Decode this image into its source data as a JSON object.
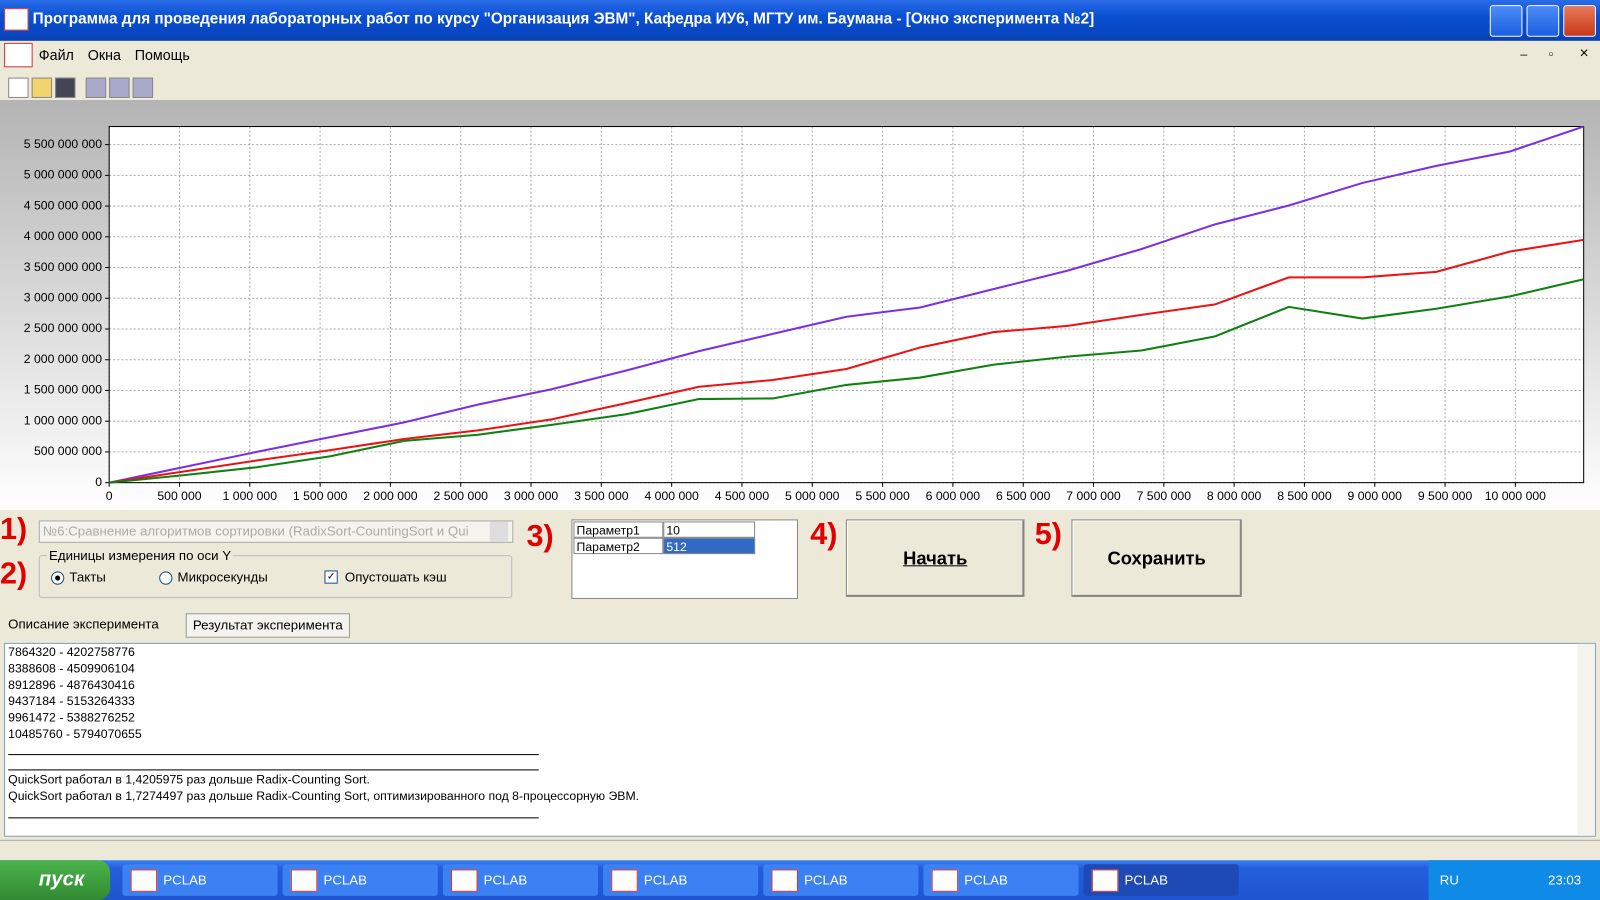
{
  "window": {
    "title": "Программа для проведения лабораторных работ по курсу \"Организация ЭВМ\", Кафедра ИУ6, МГТУ им. Баумана - [Окно эксперимента №2]"
  },
  "menu": [
    "Файл",
    "Окна",
    "Помощь"
  ],
  "chart_data": {
    "type": "line",
    "x": [
      0,
      524288,
      1048576,
      1572864,
      2097152,
      2621440,
      3145728,
      3670016,
      4194304,
      4718592,
      5242880,
      5767168,
      6291456,
      6815744,
      7340032,
      7864320,
      8388608,
      8912896,
      9437184,
      9961472,
      10485760
    ],
    "series": [
      {
        "color": "#7a2ee6",
        "values": [
          0,
          250000000,
          500000000,
          740000000,
          980000000,
          1270000000,
          1520000000,
          1820000000,
          2140000000,
          2420000000,
          2700000000,
          2850000000,
          3150000000,
          3450000000,
          3800000000,
          4202758776,
          4509906104,
          4876430416,
          5153264333,
          5388276252,
          5794070655
        ]
      },
      {
        "color": "#ee1111",
        "values": [
          0,
          180000000,
          360000000,
          530000000,
          710000000,
          850000000,
          1030000000,
          1290000000,
          1560000000,
          1670000000,
          1850000000,
          2200000000,
          2450000000,
          2550000000,
          2730000000,
          2900000000,
          3340000000,
          3340000000,
          3430000000,
          3760000000,
          3950000000
        ]
      },
      {
        "color": "#108010",
        "values": [
          0,
          120000000,
          250000000,
          430000000,
          680000000,
          780000000,
          940000000,
          1110000000,
          1360000000,
          1370000000,
          1590000000,
          1710000000,
          1920000000,
          2050000000,
          2150000000,
          2380000000,
          2860000000,
          2670000000,
          2830000000,
          3030000000,
          3310000000
        ]
      }
    ],
    "xlim": [
      0,
      10485760
    ],
    "ylim": [
      0,
      5794070655
    ],
    "grid": true,
    "xticks": [
      0,
      {
        "value": 500000,
        "label": "500 000"
      },
      {
        "value": 1000000,
        "label": "1 000 000"
      },
      {
        "value": 1500000,
        "label": "1 500 000"
      },
      {
        "value": 2000000,
        "label": "2 000 000"
      },
      {
        "value": 2500000,
        "label": "2 500 000"
      },
      {
        "value": 3000000,
        "label": "3 000 000"
      },
      {
        "value": 3500000,
        "label": "3 500 000"
      },
      {
        "value": 4000000,
        "label": "4 000 000"
      },
      {
        "value": 4500000,
        "label": "4 500 000"
      },
      {
        "value": 5000000,
        "label": "5 000 000"
      },
      {
        "value": 5500000,
        "label": "5 500 000"
      },
      {
        "value": 6000000,
        "label": "6 000 000"
      },
      {
        "value": 6500000,
        "label": "6 500 000"
      },
      {
        "value": 7000000,
        "label": "7 000 000"
      },
      {
        "value": 7500000,
        "label": "7 500 000"
      },
      {
        "value": 8000000,
        "label": "8 000 000"
      },
      {
        "value": 8500000,
        "label": "8 500 000"
      },
      {
        "value": 9000000,
        "label": "9 000 000"
      },
      {
        "value": 9500000,
        "label": "9 500 000"
      },
      {
        "value": 10000000,
        "label": "10 000 000"
      }
    ],
    "yticks": [
      0,
      {
        "value": 500000000,
        "label": "500 000 000"
      },
      {
        "value": 1000000000,
        "label": "1 000 000 000"
      },
      {
        "value": 1500000000,
        "label": "1 500 000 000"
      },
      {
        "value": 2000000000,
        "label": "2 000 000 000"
      },
      {
        "value": 2500000000,
        "label": "2 500 000 000"
      },
      {
        "value": 3000000000,
        "label": "3 000 000 000"
      },
      {
        "value": 3500000000,
        "label": "3 500 000 000"
      },
      {
        "value": 4000000000,
        "label": "4 000 000 000"
      },
      {
        "value": 4500000000,
        "label": "4 500 000 000"
      },
      {
        "value": 5000000000,
        "label": "5 000 000 000"
      },
      {
        "value": 5500000000,
        "label": "5 500 000 000"
      }
    ]
  },
  "controls": {
    "markers": [
      "1)",
      "2)",
      "3)",
      "4)",
      "5)"
    ],
    "experiment_select": "№6:Сравнение алгоритмов сортировки (RadixSort-CountingSort и Qui",
    "units_group": "Единицы измерения по оси Y",
    "radios": [
      "Такты",
      "Микросекунды"
    ],
    "checkbox": "Опустошать кэш",
    "params": [
      [
        "Параметр1",
        "10"
      ],
      [
        "Параметр2",
        "512"
      ]
    ],
    "buttons": [
      "Начать",
      "Сохранить"
    ]
  },
  "tabs": [
    "Описание эксперимента",
    "Результат эксперимента"
  ],
  "output": {
    "results": [
      "7864320 - 4202758776",
      "8388608 - 4509906104",
      "8912896 - 4876430416",
      "9437184 - 5153264333",
      "9961472 - 5388276252",
      "10485760 - 5794070655"
    ],
    "conclusions": [
      "QuickSort работал в 1,4205975 раз дольше Radix-Counting Sort.",
      "QuickSort работал в 1,7274497 раз дольше Radix-Counting Sort, оптимизированного под 8-процессорную ЭВМ."
    ]
  },
  "taskbar": {
    "start": "пуск",
    "tasks": [
      "PCLAB",
      "PCLAB",
      "PCLAB",
      "PCLAB",
      "PCLAB",
      "PCLAB",
      "PCLAB"
    ],
    "lang": "RU",
    "clock": "23:03"
  }
}
